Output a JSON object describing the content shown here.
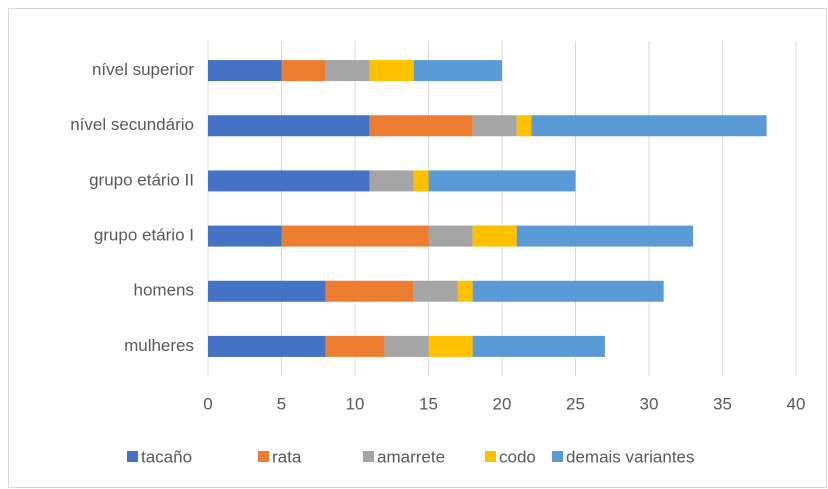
{
  "chart_data": {
    "type": "stacked-barh",
    "categories": [
      "mulheres",
      "homens",
      "grupo etário I",
      "grupo etário II",
      "nível secundário",
      "nível superior"
    ],
    "series": [
      {
        "name": "tacaño",
        "color": "#4472c4",
        "values": [
          8,
          8,
          5,
          11,
          11,
          5
        ]
      },
      {
        "name": "rata",
        "color": "#ed7d31",
        "values": [
          4,
          6,
          10,
          0,
          7,
          3
        ]
      },
      {
        "name": "amarrete",
        "color": "#a5a5a5",
        "values": [
          3,
          3,
          3,
          3,
          3,
          3
        ]
      },
      {
        "name": "codo",
        "color": "#ffc000",
        "values": [
          3,
          1,
          3,
          1,
          1,
          3
        ]
      },
      {
        "name": "demais variantes",
        "color": "#5b9bd5",
        "values": [
          9,
          13,
          12,
          10,
          16,
          6
        ]
      }
    ],
    "xlim": [
      0,
      40
    ],
    "xticks": [
      0,
      5,
      10,
      15,
      20,
      25,
      30,
      35,
      40
    ],
    "grid": true,
    "legend": "bottom"
  }
}
